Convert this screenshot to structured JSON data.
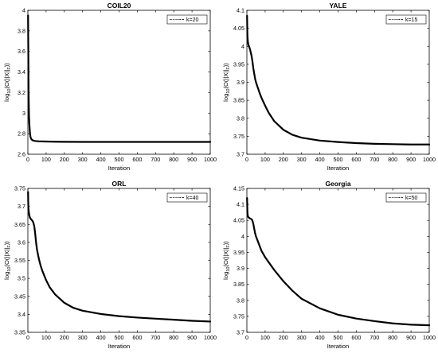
{
  "chart_data": [
    {
      "type": "line",
      "title": "COIL20",
      "xlabel": "Iteration",
      "ylabel": {
        "main": "log",
        "sub1": "10",
        "mid": "(O(||X||",
        "sub2": "F",
        "end": "))"
      },
      "xlim": [
        0,
        1000
      ],
      "ylim": [
        2.6,
        4.0
      ],
      "xticks": [
        "0",
        "100",
        "200",
        "300",
        "400",
        "500",
        "600",
        "700",
        "800",
        "900",
        "1000"
      ],
      "yticks": [
        "2.6",
        "2.8",
        "3",
        "3.2",
        "3.4",
        "3.6",
        "3.8",
        "4"
      ],
      "grid": false,
      "legend_position": "top-right",
      "series": [
        {
          "name": "k=20",
          "style": "dotted-with-markers",
          "x": [
            1,
            2,
            3,
            4,
            5,
            6,
            8,
            10,
            12,
            14,
            17,
            20,
            25,
            30,
            40,
            50,
            60,
            80,
            100,
            150,
            200,
            300,
            400,
            500,
            600,
            700,
            800,
            900,
            1000
          ],
          "y": [
            3.95,
            3.7,
            3.45,
            3.2,
            3.08,
            2.98,
            2.9,
            2.84,
            2.8,
            2.77,
            2.755,
            2.745,
            2.737,
            2.733,
            2.729,
            2.727,
            2.726,
            2.725,
            2.724,
            2.722,
            2.721,
            2.72,
            2.72,
            2.72,
            2.72,
            2.72,
            2.72,
            2.72,
            2.72
          ]
        }
      ]
    },
    {
      "type": "line",
      "title": "YALE",
      "xlabel": "Iteration",
      "ylabel": {
        "main": "log",
        "sub1": "10",
        "mid": "(O(||X||",
        "sub2": "F",
        "end": "))"
      },
      "xlim": [
        0,
        1000
      ],
      "ylim": [
        3.7,
        4.1
      ],
      "xticks": [
        "0",
        "100",
        "200",
        "300",
        "400",
        "500",
        "600",
        "700",
        "800",
        "900",
        "1000"
      ],
      "yticks": [
        "3.7",
        "3.75",
        "3.8",
        "3.85",
        "3.9",
        "3.95",
        "4",
        "4.05",
        "4.1"
      ],
      "grid": false,
      "legend_position": "top-right",
      "series": [
        {
          "name": "k=15",
          "style": "dotted-with-markers",
          "x": [
            1,
            2,
            3,
            5,
            8,
            12,
            18,
            25,
            30,
            35,
            40,
            45,
            50,
            60,
            70,
            80,
            100,
            120,
            150,
            200,
            250,
            300,
            400,
            500,
            600,
            700,
            800,
            900,
            1000
          ],
          "y": [
            4.085,
            4.055,
            4.03,
            4.015,
            4.005,
            4.0,
            3.99,
            3.975,
            3.96,
            3.94,
            3.925,
            3.91,
            3.9,
            3.885,
            3.87,
            3.857,
            3.835,
            3.815,
            3.792,
            3.768,
            3.754,
            3.746,
            3.738,
            3.734,
            3.731,
            3.729,
            3.728,
            3.727,
            3.727
          ]
        }
      ]
    },
    {
      "type": "line",
      "title": "ORL",
      "xlabel": "Iteration",
      "ylabel": {
        "main": "log",
        "sub1": "10",
        "mid": "(O(||X||",
        "sub2": "F",
        "end": "))"
      },
      "xlim": [
        0,
        1000
      ],
      "ylim": [
        3.35,
        3.75
      ],
      "xticks": [
        "0",
        "100",
        "200",
        "300",
        "400",
        "500",
        "600",
        "700",
        "800",
        "900",
        "1000"
      ],
      "yticks": [
        "3.35",
        "3.4",
        "3.45",
        "3.5",
        "3.55",
        "3.6",
        "3.65",
        "3.7",
        "3.75"
      ],
      "grid": false,
      "legend_position": "top-right",
      "series": [
        {
          "name": "k=40",
          "style": "dotted-with-markers",
          "x": [
            1,
            2,
            3,
            5,
            8,
            12,
            18,
            25,
            30,
            35,
            40,
            45,
            50,
            60,
            70,
            80,
            100,
            120,
            150,
            200,
            250,
            300,
            400,
            500,
            600,
            700,
            800,
            900,
            1000
          ],
          "y": [
            3.74,
            3.71,
            3.695,
            3.685,
            3.675,
            3.668,
            3.664,
            3.66,
            3.655,
            3.645,
            3.625,
            3.6,
            3.58,
            3.555,
            3.535,
            3.52,
            3.495,
            3.475,
            3.455,
            3.432,
            3.418,
            3.41,
            3.401,
            3.395,
            3.391,
            3.388,
            3.385,
            3.382,
            3.38
          ]
        }
      ]
    },
    {
      "type": "line",
      "title": "Georgia",
      "xlabel": "Iteration",
      "ylabel": {
        "main": "log",
        "sub1": "10",
        "mid": "(O(||X||",
        "sub2": "F",
        "end": "))"
      },
      "xlim": [
        0,
        1000
      ],
      "ylim": [
        3.7,
        4.15
      ],
      "xticks": [
        "0",
        "100",
        "200",
        "300",
        "400",
        "500",
        "600",
        "700",
        "800",
        "900",
        "1000"
      ],
      "yticks": [
        "3.7",
        "3.75",
        "3.8",
        "3.85",
        "3.9",
        "3.95",
        "4",
        "4.05",
        "4.1",
        "4.15"
      ],
      "grid": false,
      "legend_position": "top-right",
      "series": [
        {
          "name": "k=50",
          "style": "dotted-with-markers",
          "x": [
            1,
            2,
            3,
            5,
            8,
            12,
            18,
            25,
            30,
            35,
            40,
            45,
            50,
            60,
            70,
            80,
            100,
            150,
            200,
            250,
            300,
            400,
            500,
            600,
            700,
            800,
            900,
            1000
          ],
          "y": [
            4.12,
            4.095,
            4.075,
            4.065,
            4.06,
            4.058,
            4.056,
            4.054,
            4.05,
            4.04,
            4.025,
            4.01,
            4.0,
            3.985,
            3.97,
            3.955,
            3.935,
            3.895,
            3.86,
            3.83,
            3.805,
            3.775,
            3.755,
            3.743,
            3.735,
            3.728,
            3.724,
            3.722
          ]
        }
      ]
    }
  ]
}
